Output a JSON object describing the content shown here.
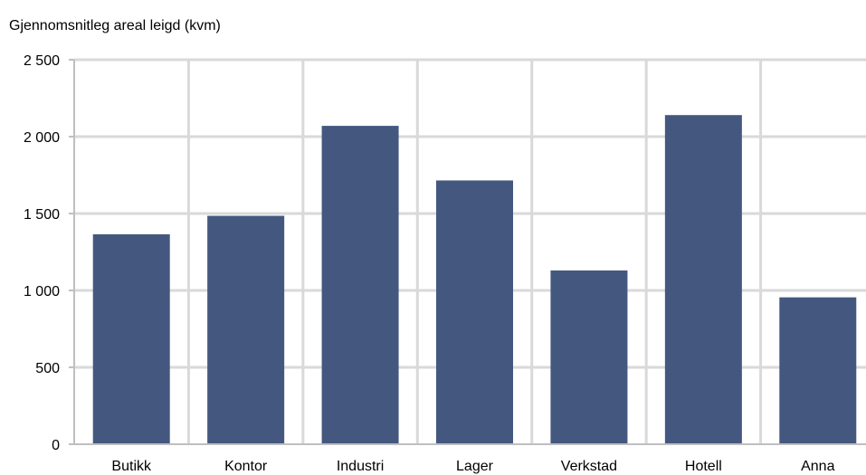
{
  "chart_data": {
    "type": "bar",
    "title": "Gjennomsnitleg areal leigd (kvm)",
    "xlabel": "",
    "ylabel": "",
    "categories": [
      "Butikk",
      "Kontor",
      "Industri",
      "Lager",
      "Verkstad",
      "Hotell",
      "Anna"
    ],
    "values": [
      1365,
      1485,
      2070,
      1715,
      1130,
      2140,
      955
    ],
    "ylim": [
      0,
      2500
    ],
    "yticks": [
      0,
      500,
      1000,
      1500,
      2000,
      2500
    ],
    "ytick_labels": [
      "0",
      "500",
      "1 000",
      "1 500",
      "2 000",
      "2 500"
    ],
    "grid": true,
    "legend": "none",
    "colors": {
      "bar": "#44587f",
      "grid": "#d9d9d9",
      "axis": "#bfbfbf"
    }
  }
}
